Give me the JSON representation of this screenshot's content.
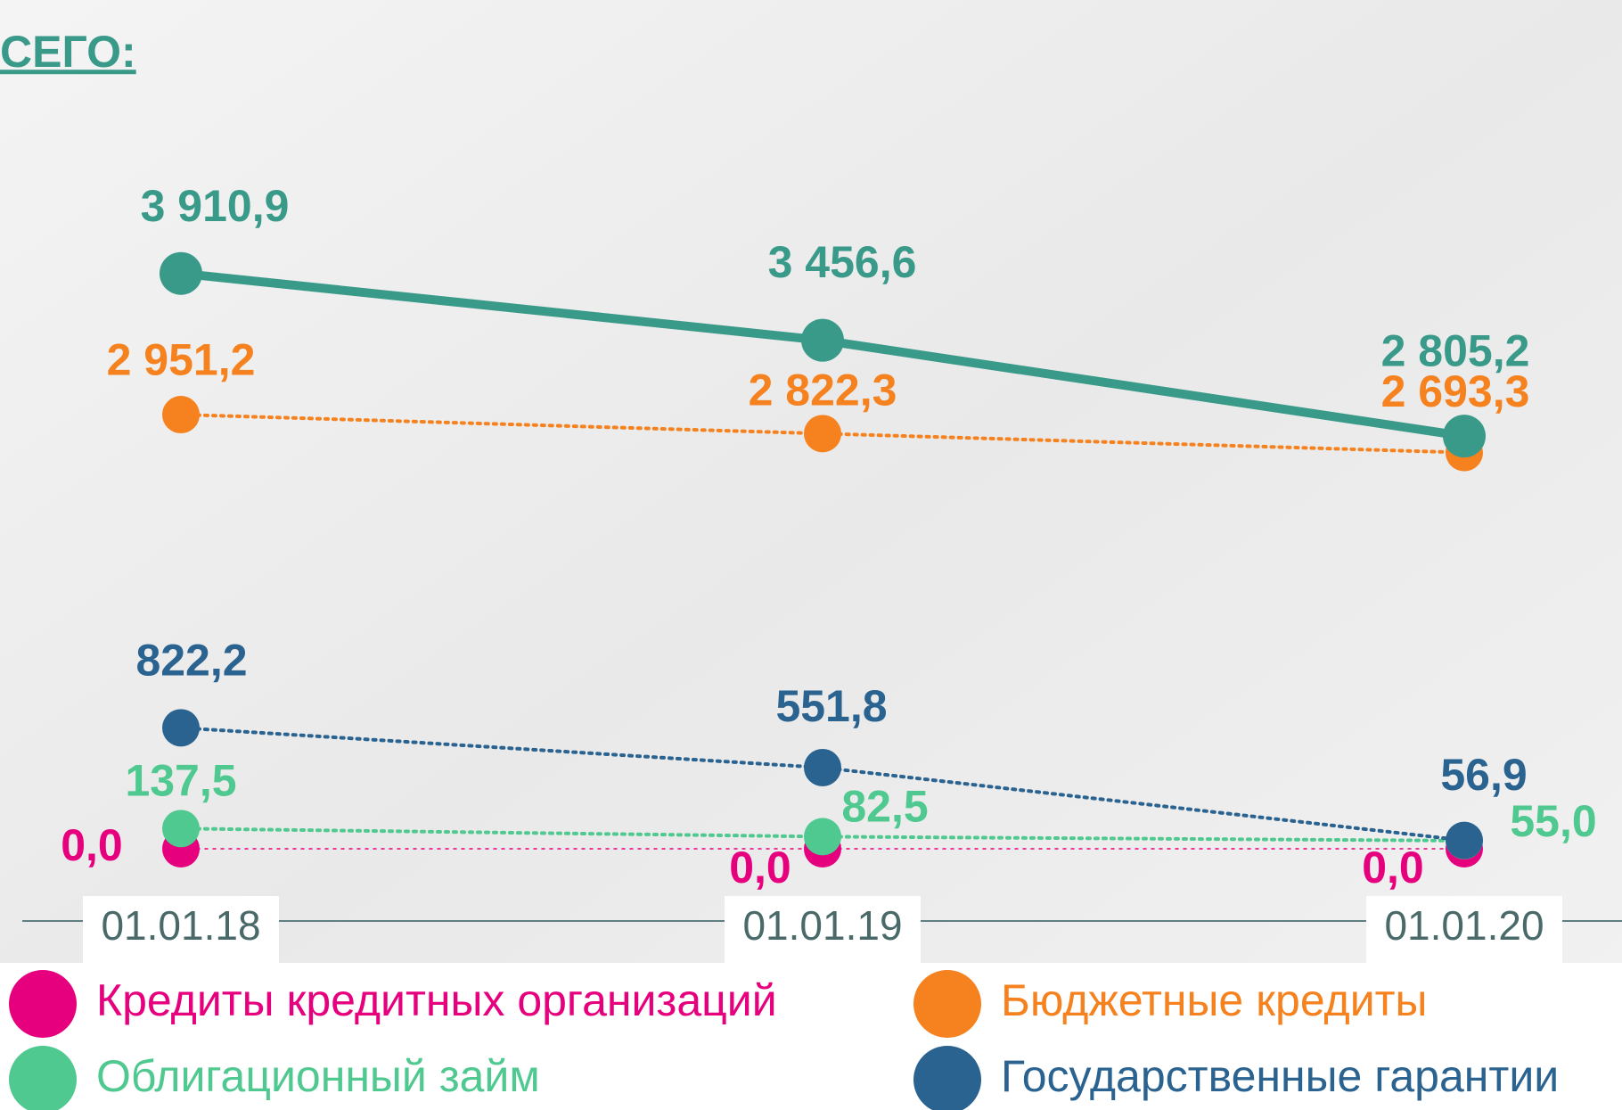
{
  "chart_data": {
    "type": "line",
    "title": "СЕГО:",
    "categories": [
      "01.01.18",
      "01.01.19",
      "01.01.20"
    ],
    "series": [
      {
        "color": "#3a9a8a",
        "style": "solid",
        "values": [
          3910.9,
          3456.6,
          2805.2
        ],
        "value_labels": [
          "3 910,9",
          "3 456,6",
          "2 805,2"
        ]
      },
      {
        "name": "Бюджетные кредиты",
        "color": "#f5821f",
        "style": "dotted",
        "values": [
          2951.2,
          2822.3,
          2693.3
        ],
        "value_labels": [
          "2 951,2",
          "2 822,3",
          "2 693,3"
        ]
      },
      {
        "name": "Государственные гарантии",
        "color": "#2a6290",
        "style": "dotted",
        "values": [
          822.2,
          551.8,
          56.9
        ],
        "value_labels": [
          "822,2",
          "551,8",
          "56,9"
        ]
      },
      {
        "name": "Облигационный займ",
        "color": "#4fc98f",
        "style": "dotted",
        "values": [
          137.5,
          82.5,
          55.0
        ],
        "value_labels": [
          "137,5",
          "82,5",
          "55,0"
        ]
      },
      {
        "name": "Кредиты кредитных организаций",
        "color": "#e6007e",
        "style": "dotted",
        "values": [
          0,
          0,
          0
        ],
        "value_labels": [
          "0,0",
          "0,0",
          "0,0"
        ]
      }
    ]
  }
}
